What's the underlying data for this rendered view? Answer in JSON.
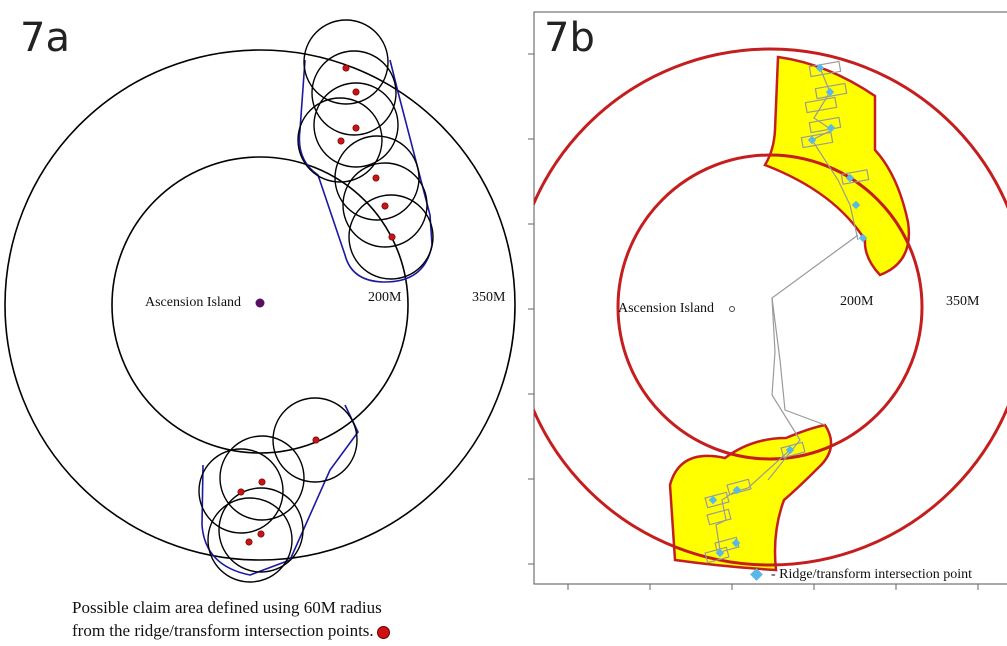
{
  "panel_a": {
    "label": "7a",
    "island_label": "Ascension Island",
    "inner_ring_label": "200M",
    "outer_ring_label": "350M",
    "caption_line1": "Possible claim area defined using 60M radius",
    "caption_line2": "from the ridge/transform intersection points.",
    "colors": {
      "ring": "#000000",
      "envelope": "#1a1aa0",
      "point": "#c81414",
      "island": "#5a1060"
    }
  },
  "panel_b": {
    "label": "7b",
    "island_label": "Ascension Island",
    "inner_ring_label": "200M",
    "outer_ring_label": "350M",
    "legend_label": "- Ridge/transform intersection point",
    "colors": {
      "ring": "#c41e1e",
      "claim_fill": "#ffff00",
      "ridge": "#9a9a9a",
      "point": "#5bb7e8"
    }
  }
}
